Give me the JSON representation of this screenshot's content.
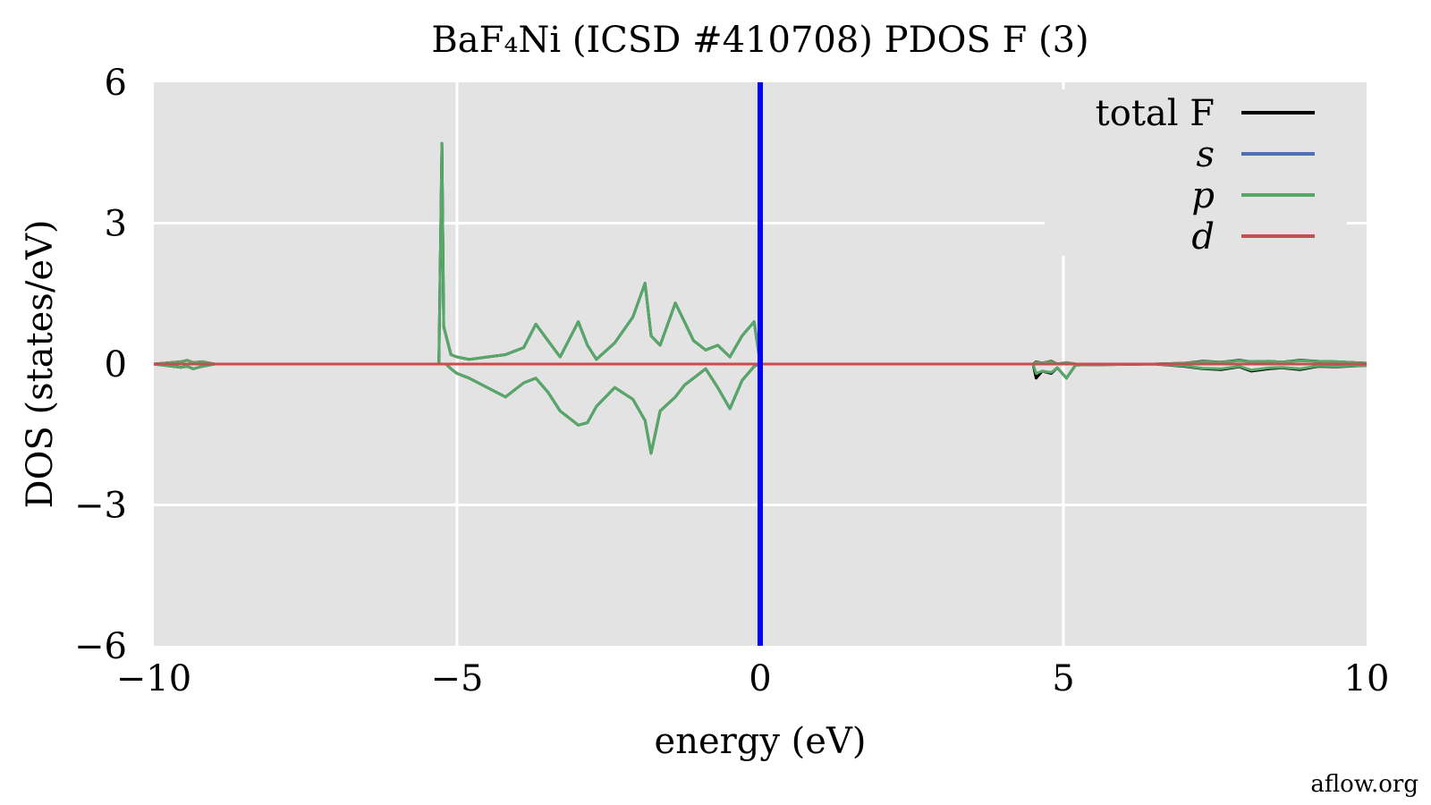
{
  "chart_data": {
    "type": "line",
    "title": "BaF₄Ni (ICSD #410708) PDOS F (3)",
    "xlabel": "energy (eV)",
    "ylabel": "DOS (states/eV)",
    "xlim": [
      -10,
      10
    ],
    "ylim": [
      -6,
      6
    ],
    "xticks": [
      -10,
      -5,
      0,
      5,
      10
    ],
    "xtick_labels": [
      "−10",
      "−5",
      "0",
      "5",
      "10"
    ],
    "yticks": [
      -6,
      -3,
      0,
      3,
      6
    ],
    "ytick_labels": [
      "−6",
      "−3",
      "0",
      "3",
      "6"
    ],
    "grid": true,
    "legend_position": "top-right",
    "fermi_level": {
      "x": 0,
      "color": "#0000ff"
    },
    "colors": {
      "background": "#e3e3e3",
      "grid": "#ffffff"
    },
    "series": [
      {
        "name": "total F",
        "color": "#000000",
        "x": [
          -10,
          -9.55,
          -9.45,
          -9.35,
          -9.2,
          -9.0,
          -5.3,
          -5.25,
          -5.22,
          -5.18,
          -5.1,
          -5.0,
          -4.8,
          -4.5,
          -4.2,
          -3.9,
          -3.7,
          -3.5,
          -3.3,
          -3.0,
          -2.85,
          -2.7,
          -2.4,
          -2.1,
          -1.9,
          -1.8,
          -1.65,
          -1.4,
          -1.25,
          -1.1,
          -0.9,
          -0.7,
          -0.5,
          -0.3,
          -0.1,
          -0.02,
          0,
          4.5,
          4.55,
          4.65,
          4.8,
          4.9,
          5.05,
          5.2,
          6.5,
          7.0,
          7.3,
          7.6,
          7.9,
          8.1,
          8.4,
          8.6,
          8.9,
          9.2,
          9.5,
          10
        ],
        "up": [
          0,
          0.05,
          0.08,
          0.03,
          0.05,
          0,
          0,
          4.7,
          0.8,
          0.6,
          0.2,
          0.15,
          0.1,
          0.15,
          0.2,
          0.35,
          0.85,
          0.5,
          0.15,
          0.9,
          0.4,
          0.1,
          0.45,
          1.0,
          1.72,
          0.6,
          0.4,
          1.3,
          0.9,
          0.5,
          0.3,
          0.4,
          0.15,
          0.6,
          0.9,
          0.2,
          0,
          0,
          0.05,
          0.02,
          0.06,
          0.0,
          0.03,
          0.0,
          0,
          0.02,
          0.06,
          0.04,
          0.08,
          0.05,
          0.06,
          0.04,
          0.08,
          0.06,
          0.05,
          0.02
        ],
        "down": [
          0,
          -0.07,
          -0.05,
          -0.1,
          -0.05,
          0,
          0,
          0,
          0,
          0,
          -0.1,
          -0.2,
          -0.3,
          -0.5,
          -0.7,
          -0.4,
          -0.3,
          -0.6,
          -1.0,
          -1.3,
          -1.25,
          -0.9,
          -0.5,
          -0.75,
          -1.2,
          -1.9,
          -1.0,
          -0.7,
          -0.45,
          -0.3,
          -0.1,
          -0.5,
          -0.95,
          -0.35,
          -0.05,
          0,
          0,
          0,
          -0.3,
          -0.15,
          -0.2,
          -0.08,
          -0.3,
          -0.02,
          0,
          -0.05,
          -0.1,
          -0.12,
          -0.06,
          -0.15,
          -0.1,
          -0.08,
          -0.12,
          -0.05,
          -0.06,
          -0.03
        ]
      },
      {
        "name": "s",
        "color": "#4c72b0",
        "x": [
          -10,
          10
        ],
        "up": [
          0,
          0
        ],
        "down": [
          0,
          0
        ]
      },
      {
        "name": "p",
        "color": "#55a868",
        "x": [
          -10,
          -9.55,
          -9.45,
          -9.35,
          -9.2,
          -9.0,
          -5.3,
          -5.25,
          -5.22,
          -5.18,
          -5.1,
          -5.0,
          -4.8,
          -4.5,
          -4.2,
          -3.9,
          -3.7,
          -3.5,
          -3.3,
          -3.0,
          -2.85,
          -2.7,
          -2.4,
          -2.1,
          -1.9,
          -1.8,
          -1.65,
          -1.4,
          -1.25,
          -1.1,
          -0.9,
          -0.7,
          -0.5,
          -0.3,
          -0.1,
          -0.02,
          0,
          4.5,
          4.55,
          4.65,
          4.8,
          4.9,
          5.05,
          5.2,
          6.5,
          7.0,
          7.3,
          7.6,
          7.9,
          8.1,
          8.4,
          8.6,
          8.9,
          9.2,
          9.5,
          10
        ],
        "up": [
          0,
          0.05,
          0.08,
          0.03,
          0.05,
          0,
          0,
          4.7,
          0.8,
          0.6,
          0.2,
          0.15,
          0.1,
          0.15,
          0.2,
          0.35,
          0.85,
          0.5,
          0.15,
          0.9,
          0.4,
          0.1,
          0.45,
          1.0,
          1.72,
          0.6,
          0.4,
          1.3,
          0.9,
          0.5,
          0.3,
          0.4,
          0.15,
          0.6,
          0.9,
          0.2,
          0,
          0,
          0.04,
          0.02,
          0.05,
          0.0,
          0.03,
          0.0,
          0,
          0.02,
          0.05,
          0.04,
          0.07,
          0.05,
          0.06,
          0.04,
          0.07,
          0.06,
          0.05,
          0.02
        ],
        "down": [
          0,
          -0.07,
          -0.05,
          -0.1,
          -0.05,
          0,
          0,
          0,
          0,
          0,
          -0.1,
          -0.2,
          -0.3,
          -0.5,
          -0.7,
          -0.4,
          -0.3,
          -0.6,
          -1.0,
          -1.3,
          -1.25,
          -0.9,
          -0.5,
          -0.75,
          -1.2,
          -1.9,
          -1.0,
          -0.7,
          -0.45,
          -0.3,
          -0.1,
          -0.5,
          -0.95,
          -0.35,
          -0.05,
          0,
          0,
          0,
          -0.2,
          -0.15,
          -0.18,
          -0.08,
          -0.3,
          -0.02,
          0,
          -0.04,
          -0.09,
          -0.1,
          -0.05,
          -0.13,
          -0.08,
          -0.07,
          -0.1,
          -0.04,
          -0.05,
          -0.03
        ]
      },
      {
        "name": "d",
        "color": "#c44e52",
        "x": [
          -10,
          10
        ],
        "up": [
          0,
          0
        ],
        "down": [
          0,
          0
        ]
      }
    ]
  },
  "legend": [
    {
      "label": "total F",
      "italic": false,
      "color": "#000000"
    },
    {
      "label": "s",
      "italic": true,
      "color": "#4c72b0"
    },
    {
      "label": "p",
      "italic": true,
      "color": "#55a868"
    },
    {
      "label": "d",
      "italic": true,
      "color": "#c44e52"
    }
  ],
  "watermark": "aflow.org"
}
